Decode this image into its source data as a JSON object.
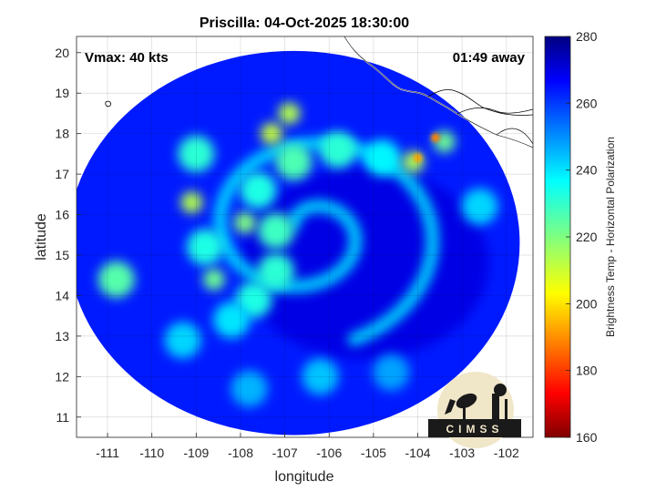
{
  "chart_data": {
    "type": "heatmap",
    "title": "Priscilla: 04-Oct-2025 18:30:00",
    "xlabel": "longitude",
    "ylabel": "latitude",
    "xlim": [
      -111.7,
      -101.4
    ],
    "ylim": [
      10.5,
      20.4
    ],
    "xticks": [
      -111,
      -110,
      -109,
      -108,
      -107,
      -106,
      -105,
      -104,
      -103,
      -102
    ],
    "yticks": [
      11,
      12,
      13,
      14,
      15,
      16,
      17,
      18,
      19,
      20
    ],
    "grid": true,
    "annotations": {
      "vmax": "Vmax: 40 kts",
      "time_away": "01:49 away"
    },
    "colorbar": {
      "label": "Brightness Temp - Horizontal Polarization",
      "range": [
        160,
        280
      ],
      "ticks": [
        160,
        180,
        200,
        220,
        240,
        260,
        280
      ],
      "colormap": "jet"
    },
    "swath": {
      "center": [
        -106.8,
        15.3
      ],
      "radius_deg": 5.1
    },
    "storm_center": [
      -106.5,
      15.6
    ],
    "rainbands": [
      {
        "lon": -107.2,
        "lat": 15.6,
        "bt": 228
      },
      {
        "lon": -107.9,
        "lat": 15.8,
        "bt": 220
      },
      {
        "lon": -107.6,
        "lat": 16.6,
        "bt": 232
      },
      {
        "lon": -106.8,
        "lat": 17.3,
        "bt": 226
      },
      {
        "lon": -105.8,
        "lat": 17.6,
        "bt": 230
      },
      {
        "lon": -104.8,
        "lat": 17.4,
        "bt": 236
      },
      {
        "lon": -104.1,
        "lat": 17.3,
        "bt": 215
      },
      {
        "lon": -103.4,
        "lat": 17.8,
        "bt": 222
      },
      {
        "lon": -108.8,
        "lat": 15.2,
        "bt": 232
      },
      {
        "lon": -108.6,
        "lat": 14.4,
        "bt": 222
      },
      {
        "lon": -107.7,
        "lat": 13.9,
        "bt": 232
      },
      {
        "lon": -107.2,
        "lat": 14.6,
        "bt": 230
      },
      {
        "lon": -108.2,
        "lat": 13.4,
        "bt": 238
      },
      {
        "lon": -110.8,
        "lat": 14.4,
        "bt": 225
      },
      {
        "lon": -109.1,
        "lat": 16.3,
        "bt": 214
      },
      {
        "lon": -107.3,
        "lat": 18.0,
        "bt": 212
      },
      {
        "lon": -106.9,
        "lat": 18.5,
        "bt": 214
      },
      {
        "lon": -103.6,
        "lat": 17.9,
        "bt": 190
      },
      {
        "lon": -104.0,
        "lat": 17.4,
        "bt": 195
      },
      {
        "lon": -109.0,
        "lat": 17.5,
        "bt": 230
      },
      {
        "lon": -106.2,
        "lat": 12.0,
        "bt": 242
      },
      {
        "lon": -107.8,
        "lat": 11.7,
        "bt": 244
      },
      {
        "lon": -104.6,
        "lat": 12.1,
        "bt": 246
      },
      {
        "lon": -109.3,
        "lat": 12.9,
        "bt": 240
      },
      {
        "lon": -102.6,
        "lat": 16.2,
        "bt": 240
      }
    ],
    "logo_text": "CIMSS"
  }
}
